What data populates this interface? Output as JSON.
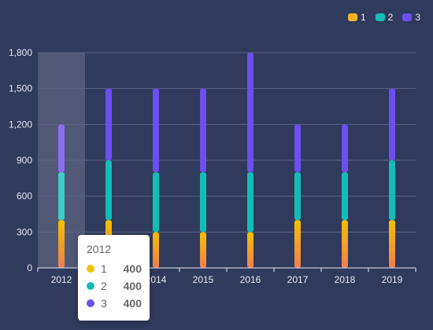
{
  "legend": [
    {
      "name": "1",
      "color": "#f5b320"
    },
    {
      "name": "2",
      "color": "#12bdb7"
    },
    {
      "name": "3",
      "color": "#6c4fef"
    }
  ],
  "tooltip": {
    "title": "2012",
    "rows": [
      {
        "name": "1",
        "value": "400",
        "color": "#f5c000"
      },
      {
        "name": "2",
        "value": "400",
        "color": "#12bdb7"
      },
      {
        "name": "3",
        "value": "400",
        "color": "#6c4fef"
      }
    ]
  },
  "chart_data": {
    "type": "bar",
    "stacked": true,
    "categories": [
      "2012",
      "2013",
      "2014",
      "2015",
      "2016",
      "2017",
      "2018",
      "2019"
    ],
    "series": [
      {
        "name": "1",
        "values": [
          400,
          400,
          300,
          300,
          300,
          400,
          400,
          400
        ],
        "color_top": "#f5c000",
        "color_bottom": "#f07e4e"
      },
      {
        "name": "2",
        "values": [
          400,
          500,
          500,
          500,
          500,
          400,
          400,
          500
        ],
        "color": "#12bdb7"
      },
      {
        "name": "3",
        "values": [
          400,
          600,
          700,
          700,
          1000,
          400,
          400,
          600
        ],
        "color": "#6c4fef"
      }
    ],
    "y_ticks": [
      "0",
      "300",
      "600",
      "900",
      "1,200",
      "1,500",
      "1,800"
    ],
    "ylim": [
      0,
      1800
    ],
    "highlighted_category": "2012",
    "grid": true
  }
}
